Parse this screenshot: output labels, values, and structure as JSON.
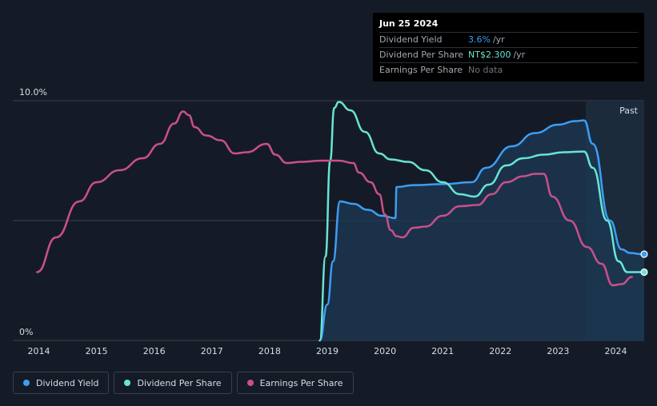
{
  "tooltip": {
    "date": "Jun 25 2024",
    "rows": [
      {
        "label": "Dividend Yield",
        "value": "3.6%",
        "unit": "/yr"
      },
      {
        "label": "Dividend Per Share",
        "value": "NT$2.300",
        "unit": "/yr"
      },
      {
        "label": "Earnings Per Share",
        "value": "No data"
      }
    ]
  },
  "region_label": "Past",
  "legend": [
    {
      "label": "Dividend Yield",
      "color": "#3b9ef5"
    },
    {
      "label": "Dividend Per Share",
      "color": "#68e4d4"
    },
    {
      "label": "Earnings Per Share",
      "color": "#c9508a"
    }
  ],
  "chart_data": {
    "type": "line",
    "title": "",
    "xlabel": "",
    "ylabel": "",
    "xlim": [
      2014,
      2024.48
    ],
    "ylim": [
      0,
      10
    ],
    "y_tick_labels": [
      "0%",
      "10.0%"
    ],
    "x_tick_labels": [
      "2014",
      "2015",
      "2016",
      "2017",
      "2018",
      "2019",
      "2020",
      "2021",
      "2022",
      "2023",
      "2024"
    ],
    "x_ticks": [
      2014,
      2015,
      2016,
      2017,
      2018,
      2019,
      2020,
      2021,
      2022,
      2023,
      2024
    ],
    "past_region_start": 2023.48,
    "series": [
      {
        "name": "Dividend Yield",
        "color": "#3b9ef5",
        "filled": true,
        "points": [
          [
            2018.87,
            0
          ],
          [
            2019.0,
            1.5
          ],
          [
            2019.1,
            3.3
          ],
          [
            2019.22,
            5.8
          ],
          [
            2019.45,
            5.7
          ],
          [
            2019.7,
            5.45
          ],
          [
            2019.95,
            5.2
          ],
          [
            2020.18,
            5.1
          ],
          [
            2020.2,
            6.4
          ],
          [
            2020.5,
            6.48
          ],
          [
            2021.0,
            6.52
          ],
          [
            2021.5,
            6.6
          ],
          [
            2021.75,
            7.2
          ],
          [
            2022.2,
            8.1
          ],
          [
            2022.6,
            8.65
          ],
          [
            2023.0,
            9.0
          ],
          [
            2023.3,
            9.15
          ],
          [
            2023.45,
            9.18
          ],
          [
            2023.6,
            8.2
          ],
          [
            2023.9,
            5.0
          ],
          [
            2024.1,
            3.8
          ],
          [
            2024.25,
            3.65
          ],
          [
            2024.45,
            3.6
          ]
        ],
        "end_marker": true
      },
      {
        "name": "Dividend Per Share",
        "color": "#68e4d4",
        "filled": false,
        "points": [
          [
            2018.87,
            0
          ],
          [
            2018.97,
            3.5
          ],
          [
            2019.05,
            7.5
          ],
          [
            2019.12,
            9.7
          ],
          [
            2019.2,
            9.95
          ],
          [
            2019.4,
            9.6
          ],
          [
            2019.65,
            8.7
          ],
          [
            2019.9,
            7.8
          ],
          [
            2020.1,
            7.55
          ],
          [
            2020.4,
            7.45
          ],
          [
            2020.7,
            7.1
          ],
          [
            2021.0,
            6.6
          ],
          [
            2021.3,
            6.1
          ],
          [
            2021.55,
            6.0
          ],
          [
            2021.8,
            6.5
          ],
          [
            2022.1,
            7.3
          ],
          [
            2022.4,
            7.6
          ],
          [
            2022.75,
            7.75
          ],
          [
            2023.1,
            7.85
          ],
          [
            2023.45,
            7.88
          ],
          [
            2023.6,
            7.2
          ],
          [
            2023.85,
            5.0
          ],
          [
            2024.05,
            3.3
          ],
          [
            2024.2,
            2.85
          ],
          [
            2024.45,
            2.85
          ]
        ],
        "end_marker": true
      },
      {
        "name": "Earnings Per Share",
        "color": "#c9508a",
        "filled": false,
        "points": [
          [
            2013.97,
            2.85
          ],
          [
            2014.3,
            4.3
          ],
          [
            2014.7,
            5.8
          ],
          [
            2015.0,
            6.6
          ],
          [
            2015.4,
            7.1
          ],
          [
            2015.8,
            7.6
          ],
          [
            2016.1,
            8.2
          ],
          [
            2016.35,
            9.05
          ],
          [
            2016.5,
            9.55
          ],
          [
            2016.6,
            9.4
          ],
          [
            2016.7,
            8.9
          ],
          [
            2016.9,
            8.55
          ],
          [
            2017.15,
            8.35
          ],
          [
            2017.4,
            7.8
          ],
          [
            2017.6,
            7.85
          ],
          [
            2017.95,
            8.2
          ],
          [
            2018.1,
            7.75
          ],
          [
            2018.3,
            7.4
          ],
          [
            2018.55,
            7.45
          ],
          [
            2018.9,
            7.5
          ],
          [
            2019.2,
            7.5
          ],
          [
            2019.45,
            7.4
          ],
          [
            2019.55,
            7.0
          ],
          [
            2019.75,
            6.6
          ],
          [
            2019.9,
            6.1
          ],
          [
            2020.0,
            5.25
          ],
          [
            2020.1,
            4.6
          ],
          [
            2020.2,
            4.35
          ],
          [
            2020.3,
            4.3
          ],
          [
            2020.5,
            4.7
          ],
          [
            2020.7,
            4.75
          ],
          [
            2021.0,
            5.2
          ],
          [
            2021.3,
            5.6
          ],
          [
            2021.6,
            5.65
          ],
          [
            2021.85,
            6.1
          ],
          [
            2022.1,
            6.6
          ],
          [
            2022.4,
            6.85
          ],
          [
            2022.6,
            6.95
          ],
          [
            2022.75,
            6.95
          ],
          [
            2022.9,
            6.0
          ],
          [
            2023.2,
            5.0
          ],
          [
            2023.5,
            3.9
          ],
          [
            2023.75,
            3.2
          ],
          [
            2023.95,
            2.3
          ],
          [
            2024.1,
            2.35
          ],
          [
            2024.28,
            2.65
          ]
        ],
        "end_marker": false
      }
    ]
  }
}
